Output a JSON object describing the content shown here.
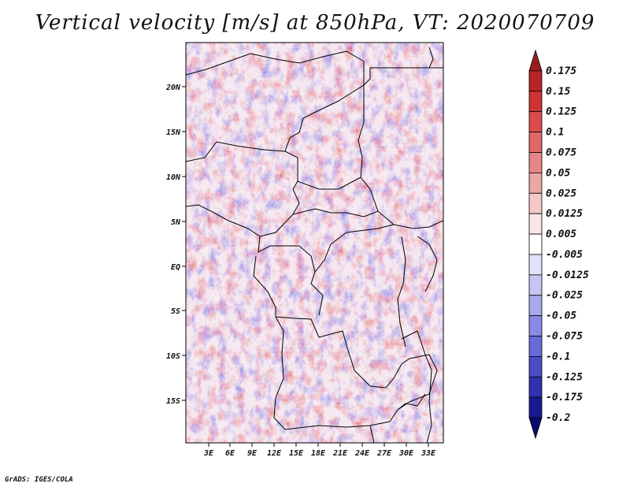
{
  "title": "Vertical velocity [m/s] at 850hPa, VT: 2020070709",
  "footer": "GrADS: IGES/COLA",
  "map": {
    "lat_labels": [
      "20N",
      "15N",
      "10N",
      "5N",
      "EQ",
      "5S",
      "10S",
      "15S"
    ],
    "lon_labels": [
      "3E",
      "6E",
      "9E",
      "12E",
      "15E",
      "18E",
      "21E",
      "24E",
      "27E",
      "30E",
      "33E"
    ]
  },
  "colorbar": {
    "levels": [
      "0.175",
      "0.15",
      "0.125",
      "0.1",
      "0.075",
      "0.05",
      "0.025",
      "0.0125",
      "0.005",
      "-0.005",
      "-0.0125",
      "-0.025",
      "-0.05",
      "-0.075",
      "-0.1",
      "-0.125",
      "-0.175",
      "-0.2"
    ],
    "colors": [
      "#9c1c1c",
      "#b82525",
      "#cd3333",
      "#dd4c4c",
      "#e06868",
      "#e68787",
      "#eda6a6",
      "#f4c8c8",
      "#f9e6e6",
      "#ffffff",
      "#e2e2fa",
      "#c6c6f4",
      "#a8a8ee",
      "#8a8ae6",
      "#6a6ad8",
      "#4c4cc8",
      "#3030b0",
      "#1a1a90",
      "#0a0a70"
    ]
  }
}
